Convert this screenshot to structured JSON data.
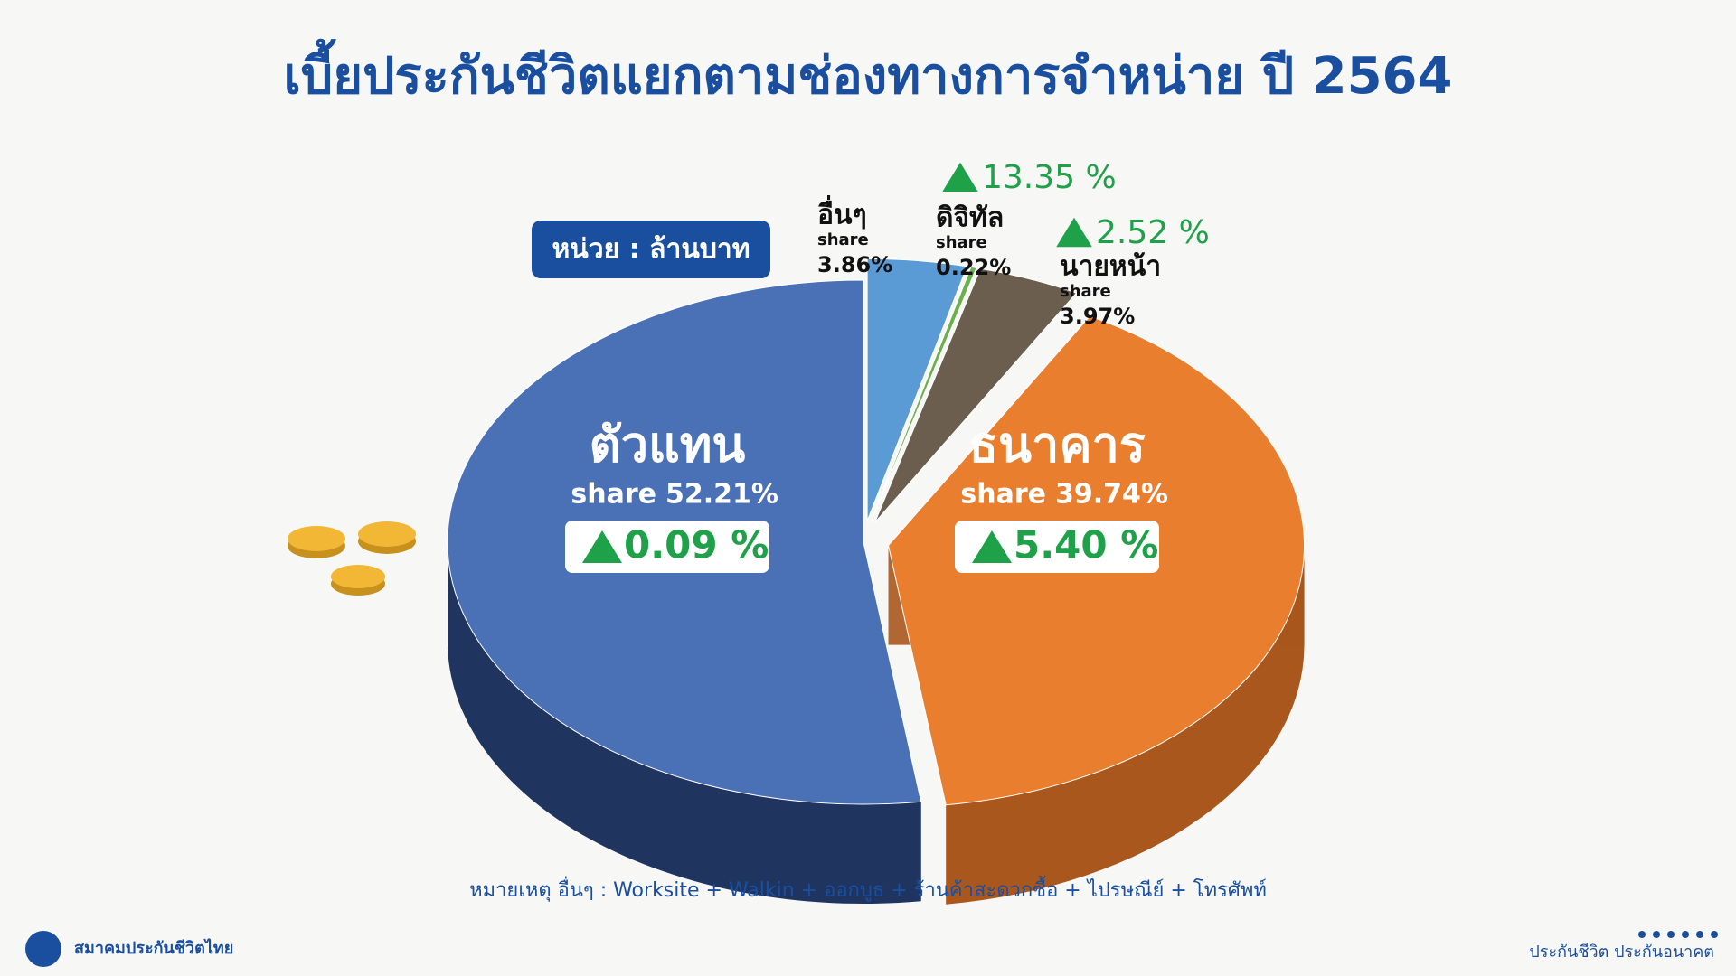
{
  "chart_data": {
    "type": "pie",
    "title": "เบี้ยประกันชีวิตแยกตามช่องทางการจำหน่าย ปี 2564",
    "unit_note": "หน่วย : ล้านบาท",
    "categories": [
      "ตัวแทน",
      "ธนาคาร",
      "นายหน้า",
      "ดิจิทัล",
      "อื่นๆ"
    ],
    "values": [
      52.21,
      39.74,
      3.97,
      0.22,
      3.86
    ],
    "value_labels": [
      "52.21%",
      "39.74%",
      "3.97%",
      "0.22%",
      "3.86%"
    ],
    "share_word": "share",
    "growth": [
      0.09,
      5.4,
      2.52,
      13.35,
      null
    ],
    "growth_labels": [
      "0.09 %",
      "5.40 %",
      "2.52 %",
      "13.35 %",
      null
    ],
    "colors": [
      "#4a70b5",
      "#e97e2e",
      "#6b5e4e",
      "#6ab04c",
      "#5b9bd5"
    ],
    "side_colors": [
      "#1f3560",
      "#a9571d",
      "#3a3a3a",
      "#3f7a2c",
      "#34689a"
    ],
    "note": "หมายเหตุ อื่นๆ : Worksite + Walkin + ออกบูธ + ร้านค้าสะดวกซื้อ + ไปรษณีย์ + โทรศัพท์"
  },
  "footer": {
    "organization": "สมาคมประกันชีวิตไทย",
    "slogan": "ประกันชีวิต ประกันอนาคต"
  }
}
